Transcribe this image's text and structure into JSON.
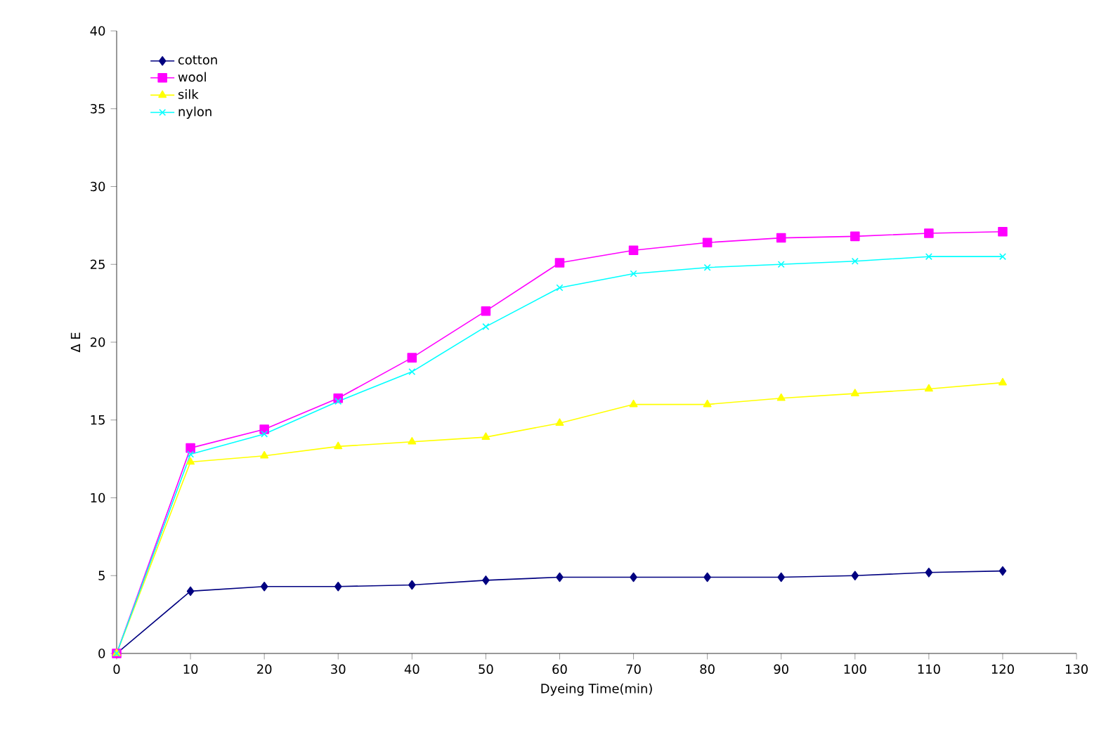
{
  "chart_data": {
    "type": "line",
    "xlabel": "Dyeing Time(min)",
    "ylabel": "Δ E",
    "x": [
      0,
      10,
      20,
      30,
      40,
      50,
      60,
      70,
      80,
      90,
      100,
      110,
      120
    ],
    "series": [
      {
        "name": "cotton",
        "color": "#000080",
        "marker": "diamond",
        "values": [
          0,
          4.0,
          4.3,
          4.3,
          4.4,
          4.7,
          4.9,
          4.9,
          4.9,
          4.9,
          5.0,
          5.2,
          5.3
        ]
      },
      {
        "name": "wool",
        "color": "#ff00ff",
        "marker": "square",
        "values": [
          0,
          13.2,
          14.4,
          16.4,
          19.0,
          22.0,
          25.1,
          25.9,
          26.4,
          26.7,
          26.8,
          27.0,
          27.1
        ]
      },
      {
        "name": "silk",
        "color": "#ffff00",
        "marker": "triangle",
        "values": [
          0,
          12.3,
          12.7,
          13.3,
          13.6,
          13.9,
          14.8,
          16.0,
          16.0,
          16.4,
          16.7,
          17.0,
          17.4
        ]
      },
      {
        "name": "nylon",
        "color": "#00ffff",
        "marker": "cross",
        "values": [
          0,
          12.8,
          14.1,
          16.2,
          18.1,
          21.0,
          23.5,
          24.4,
          24.8,
          25.0,
          25.2,
          25.5,
          25.5
        ]
      }
    ],
    "xlim": [
      0,
      130
    ],
    "xticks": [
      0,
      10,
      20,
      30,
      40,
      50,
      60,
      70,
      80,
      90,
      100,
      110,
      120,
      130
    ],
    "ylim": [
      0,
      40
    ],
    "yticks": [
      0,
      5,
      10,
      15,
      20,
      25,
      30,
      35,
      40
    ],
    "grid": false,
    "legend": "top left",
    "line_style": "solid"
  }
}
